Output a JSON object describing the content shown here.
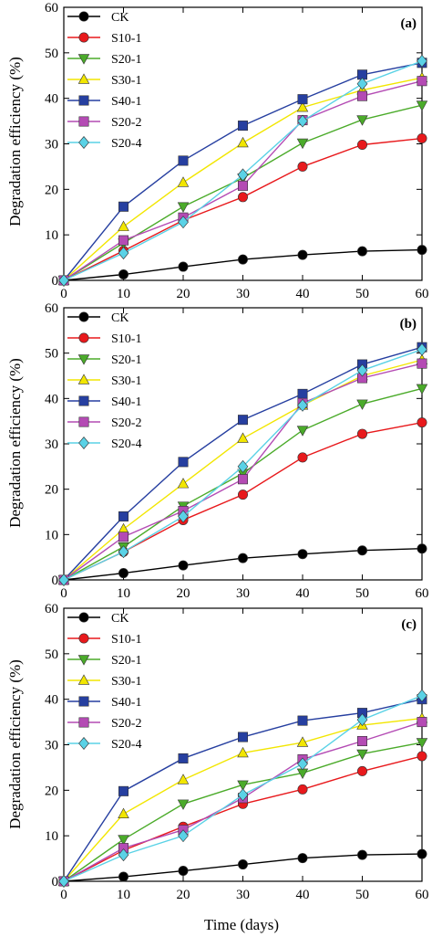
{
  "figure": {
    "ylabel": "Degradation efficiency (%)",
    "xlabel": "Time (days)"
  },
  "chart_data": [
    {
      "type": "line",
      "panel_label": "(a)",
      "x": [
        0,
        10,
        20,
        30,
        40,
        50,
        60
      ],
      "xlim": [
        0,
        60
      ],
      "ylim": [
        0,
        60
      ],
      "xticks": [
        "0",
        "10",
        "20",
        "30",
        "40",
        "50",
        "60"
      ],
      "yticks": [
        "0",
        "10",
        "20",
        "30",
        "40",
        "50",
        "60"
      ],
      "ylabel": "Degradation efficiency (%)",
      "xlabel": "",
      "legend": "top-left",
      "grid": false,
      "series": [
        {
          "name": "CK",
          "color": "#000000",
          "marker": "circle",
          "values": [
            0,
            1.3,
            3.0,
            4.6,
            5.6,
            6.4,
            6.7
          ]
        },
        {
          "name": "S10-1",
          "color": "#e8191c",
          "marker": "circle",
          "values": [
            0,
            6.5,
            13.2,
            18.3,
            25.0,
            29.8,
            31.2
          ]
        },
        {
          "name": "S20-1",
          "color": "#4bab2a",
          "marker": "triangle-down",
          "values": [
            0,
            8.2,
            16.2,
            22.5,
            30.2,
            35.3,
            38.5
          ]
        },
        {
          "name": "S30-1",
          "color": "#f2e600",
          "marker": "triangle-up",
          "values": [
            0,
            11.8,
            21.5,
            30.2,
            38.0,
            41.8,
            44.5
          ]
        },
        {
          "name": "S40-1",
          "color": "#263fa0",
          "marker": "square",
          "values": [
            0,
            16.2,
            26.3,
            34.0,
            39.8,
            45.2,
            47.8
          ]
        },
        {
          "name": "S20-2",
          "color": "#b44bb4",
          "marker": "square",
          "values": [
            0,
            8.8,
            13.8,
            20.8,
            35.2,
            40.5,
            43.8
          ]
        },
        {
          "name": "S20-4",
          "color": "#5ad2e6",
          "marker": "diamond",
          "values": [
            0,
            6.0,
            12.8,
            23.2,
            35.0,
            43.2,
            48.2
          ]
        }
      ]
    },
    {
      "type": "line",
      "panel_label": "(b)",
      "x": [
        0,
        10,
        20,
        30,
        40,
        50,
        60
      ],
      "xlim": [
        0,
        60
      ],
      "ylim": [
        0,
        60
      ],
      "xticks": [
        "0",
        "10",
        "20",
        "30",
        "40",
        "50",
        "60"
      ],
      "yticks": [
        "0",
        "10",
        "20",
        "30",
        "40",
        "50",
        "60"
      ],
      "ylabel": "Degradation efficiency (%)",
      "xlabel": "",
      "legend": "top-left",
      "grid": false,
      "series": [
        {
          "name": "CK",
          "color": "#000000",
          "marker": "circle",
          "values": [
            0,
            1.5,
            3.2,
            4.8,
            5.7,
            6.5,
            6.9
          ]
        },
        {
          "name": "S10-1",
          "color": "#e8191c",
          "marker": "circle",
          "values": [
            0,
            6.2,
            13.2,
            18.8,
            27.0,
            32.2,
            34.7
          ]
        },
        {
          "name": "S20-1",
          "color": "#4bab2a",
          "marker": "triangle-down",
          "values": [
            0,
            7.3,
            16.3,
            23.5,
            33.0,
            38.8,
            42.2
          ]
        },
        {
          "name": "S30-1",
          "color": "#f2e600",
          "marker": "triangle-up",
          "values": [
            0,
            11.2,
            21.2,
            31.2,
            38.5,
            45.0,
            48.5
          ]
        },
        {
          "name": "S40-1",
          "color": "#263fa0",
          "marker": "square",
          "values": [
            0,
            14.0,
            26.0,
            35.3,
            41.0,
            47.5,
            51.3
          ]
        },
        {
          "name": "S20-2",
          "color": "#b44bb4",
          "marker": "square",
          "values": [
            0,
            9.5,
            15.2,
            22.2,
            39.0,
            44.5,
            47.7
          ]
        },
        {
          "name": "S20-4",
          "color": "#5ad2e6",
          "marker": "diamond",
          "values": [
            0,
            6.2,
            14.0,
            25.0,
            38.5,
            46.2,
            50.8
          ]
        }
      ]
    },
    {
      "type": "line",
      "panel_label": "(c)",
      "x": [
        0,
        10,
        20,
        30,
        40,
        50,
        60
      ],
      "xlim": [
        0,
        60
      ],
      "ylim": [
        0,
        60
      ],
      "xticks": [
        "0",
        "10",
        "20",
        "30",
        "40",
        "50",
        "60"
      ],
      "yticks": [
        "0",
        "10",
        "20",
        "30",
        "40",
        "50",
        "60"
      ],
      "ylabel": "Degradation efficiency (%)",
      "xlabel": "Time (days)",
      "legend": "top-left",
      "grid": false,
      "series": [
        {
          "name": "CK",
          "color": "#000000",
          "marker": "circle",
          "values": [
            0,
            1.0,
            2.3,
            3.7,
            5.1,
            5.8,
            6.0
          ]
        },
        {
          "name": "S10-1",
          "color": "#e8191c",
          "marker": "circle",
          "values": [
            0,
            6.8,
            12.0,
            17.0,
            20.2,
            24.2,
            27.5
          ]
        },
        {
          "name": "S20-1",
          "color": "#4bab2a",
          "marker": "triangle-down",
          "values": [
            0,
            9.2,
            17.0,
            21.2,
            23.8,
            28.0,
            30.5
          ]
        },
        {
          "name": "S30-1",
          "color": "#f2e600",
          "marker": "triangle-up",
          "values": [
            0,
            14.8,
            22.3,
            28.2,
            30.5,
            34.3,
            35.8
          ]
        },
        {
          "name": "S40-1",
          "color": "#263fa0",
          "marker": "square",
          "values": [
            0,
            19.8,
            27.0,
            31.7,
            35.3,
            37.0,
            40.0
          ]
        },
        {
          "name": "S20-2",
          "color": "#b44bb4",
          "marker": "square",
          "values": [
            0,
            7.3,
            11.3,
            18.3,
            26.8,
            30.8,
            35.0
          ]
        },
        {
          "name": "S20-4",
          "color": "#5ad2e6",
          "marker": "diamond",
          "values": [
            0,
            5.8,
            10.0,
            19.0,
            25.8,
            35.5,
            40.8
          ]
        }
      ]
    }
  ]
}
